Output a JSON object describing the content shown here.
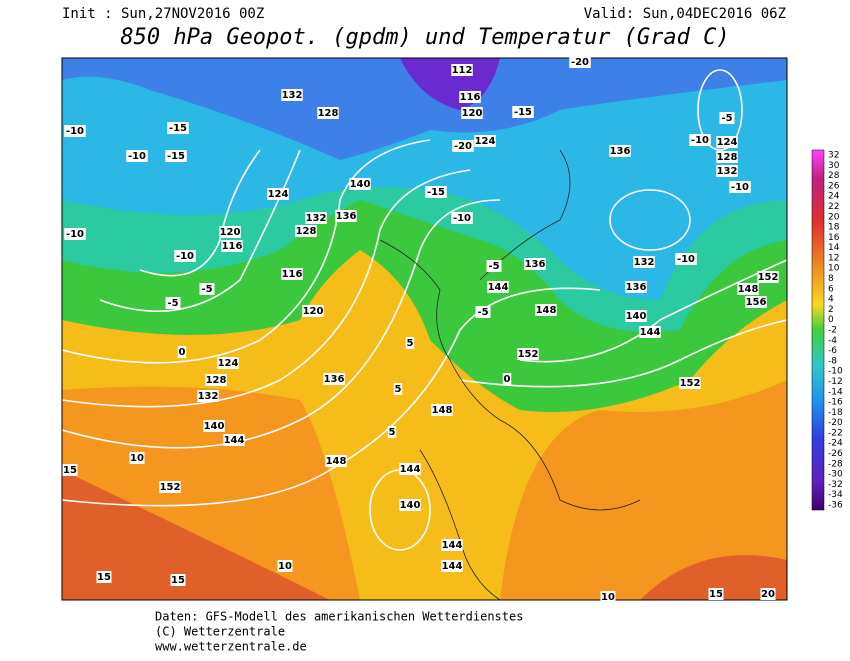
{
  "header": {
    "init": "Init : Sun,27NOV2016 00Z",
    "valid": "Valid: Sun,04DEC2016 06Z",
    "title": "850 hPa Geopot. (gpdm) und Temperatur (Grad C)"
  },
  "colorbar": {
    "labels": [
      32,
      30,
      28,
      26,
      24,
      22,
      20,
      18,
      16,
      14,
      12,
      10,
      8,
      6,
      4,
      2,
      0,
      -2,
      -4,
      -6,
      -8,
      -10,
      -12,
      -14,
      -16,
      -18,
      -20,
      -22,
      -24,
      -26,
      -28,
      -30,
      -32,
      -34,
      -36
    ]
  },
  "map_labels": [
    132,
    128,
    112,
    116,
    120,
    124,
    136,
    124,
    128,
    132,
    120,
    116,
    116,
    120,
    124,
    128,
    132,
    136,
    140,
    144,
    148,
    152,
    148,
    144,
    140,
    144,
    144,
    152,
    148,
    144,
    136,
    132,
    136,
    140,
    144,
    152,
    152,
    148,
    156,
    140,
    136,
    132,
    128,
    124,
    -10,
    -10,
    -15,
    -15,
    -10,
    -10,
    -5,
    -5,
    0,
    -5,
    -10,
    -10,
    -10,
    -5,
    -5,
    0,
    5,
    5,
    5,
    10,
    15,
    15,
    15,
    10,
    -10,
    -15,
    -20,
    -15,
    -20,
    15,
    20,
    10
  ],
  "footer": {
    "lines": [
      "Daten: GFS-Modell des amerikanischen Wetterdienstes",
      "(C) Wetterzentrale",
      "www.wetterzentrale.de"
    ]
  }
}
